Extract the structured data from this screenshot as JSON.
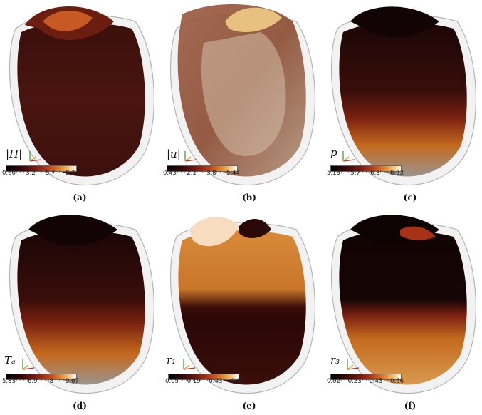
{
  "panels": [
    {
      "id": "a",
      "symbol": "|Π|",
      "ticks": [
        "0.60",
        "3.2",
        "5.7",
        "8.24"
      ],
      "caption": "(a)"
    },
    {
      "id": "b",
      "symbol": "|u|",
      "ticks": [
        "0.43",
        "2.1",
        "3.8",
        "5.44"
      ],
      "caption": "(b)"
    },
    {
      "id": "c",
      "symbol": "p",
      "ticks": [
        "5.15",
        "5.7",
        "6.3",
        "6.93"
      ],
      "caption": "(c)"
    },
    {
      "id": "d",
      "symbol": "Tₐ",
      "ticks": [
        "5.83",
        "6.9",
        "8",
        "9.07"
      ],
      "caption": "(d)"
    },
    {
      "id": "e",
      "symbol": "r₁",
      "ticks": [
        "-0.05",
        "0.19",
        "0.43",
        "0.67"
      ],
      "caption": "(e)"
    },
    {
      "id": "f",
      "symbol": "r₃",
      "ticks": [
        "0.02",
        "0.23",
        "0.45",
        "0.66"
      ],
      "caption": "(f)"
    }
  ],
  "colors": {
    "dark": "#2a0a08",
    "mid": "#7a1f14",
    "orange": "#c8641c",
    "pale": "#f0c89a",
    "mesh": "#b0b0b0"
  }
}
